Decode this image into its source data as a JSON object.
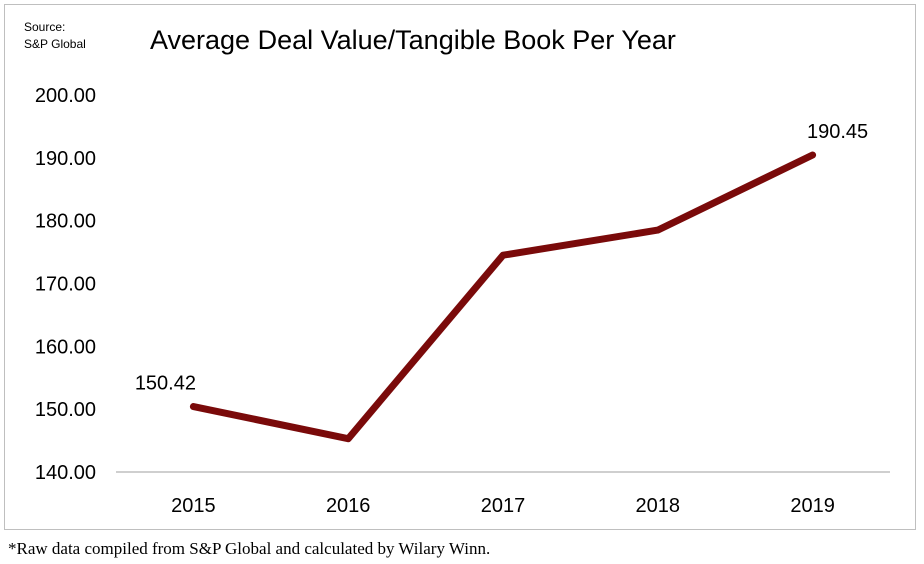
{
  "source": {
    "line1": "Source:",
    "line2": "S&P Global"
  },
  "footnote": "*Raw data compiled from S&P Global and calculated by Wilary Winn.",
  "colors": {
    "line": "#7a0a0a",
    "axis": "#bfbfbf"
  },
  "chart_data": {
    "type": "line",
    "title": "Average Deal Value/Tangible  Book Per Year",
    "categories": [
      "2015",
      "2016",
      "2017",
      "2018",
      "2019"
    ],
    "series": [
      {
        "values": [
          150.42,
          145.3,
          174.5,
          178.5,
          190.45
        ]
      }
    ],
    "data_labels": [
      {
        "index": 0,
        "text": "150.42"
      },
      {
        "index": 4,
        "text": "190.45"
      }
    ],
    "ylim": [
      140,
      200
    ],
    "y_ticks": [
      "140.00",
      "150.00",
      "160.00",
      "170.00",
      "180.00",
      "190.00",
      "200.00"
    ],
    "grid": false,
    "legend": "none"
  }
}
